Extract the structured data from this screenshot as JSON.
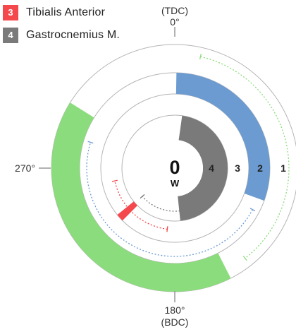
{
  "legend": [
    {
      "number": "3",
      "label": "Tibialis Anterior",
      "color": "#f5484c"
    },
    {
      "number": "4",
      "label": "Gastrocnemius M.",
      "color": "#7a7a7a"
    }
  ],
  "angles": {
    "top_label": "(TDC)",
    "top_value": "0°",
    "left_value": "270°",
    "bottom_value": "180°",
    "bottom_label": "(BDC)"
  },
  "center": {
    "value": "0",
    "unit": "W"
  },
  "ring_numbers": [
    "1",
    "2",
    "3",
    "4"
  ],
  "colors": {
    "ring1": "#8bdc7c",
    "ring2": "#6b9bd1",
    "ring3": "#f5484c",
    "ring4": "#7a7a7a",
    "outline": "#b5b5b5",
    "ring1_dotted": "#8bdc7c",
    "ring2_dotted": "#6b9bd1",
    "ring3_dotted": "#f5484c",
    "ring4_dotted": "#7a7a7a"
  },
  "rings": [
    {
      "ring": "1",
      "active_start_deg": 153,
      "active_end_deg": 302,
      "range_start_deg": 13,
      "range_end_deg": 142
    },
    {
      "ring": "2",
      "active_start_deg": 1,
      "active_end_deg": 110,
      "range_start_deg": 118,
      "range_end_deg": 287
    },
    {
      "ring": "3",
      "active_start_deg": 225,
      "active_end_deg": 231,
      "range_start_deg": 187,
      "range_end_deg": 258
    },
    {
      "ring": "4",
      "active_start_deg": 8,
      "active_end_deg": 174,
      "range_start_deg": 173,
      "range_end_deg": 229
    }
  ]
}
